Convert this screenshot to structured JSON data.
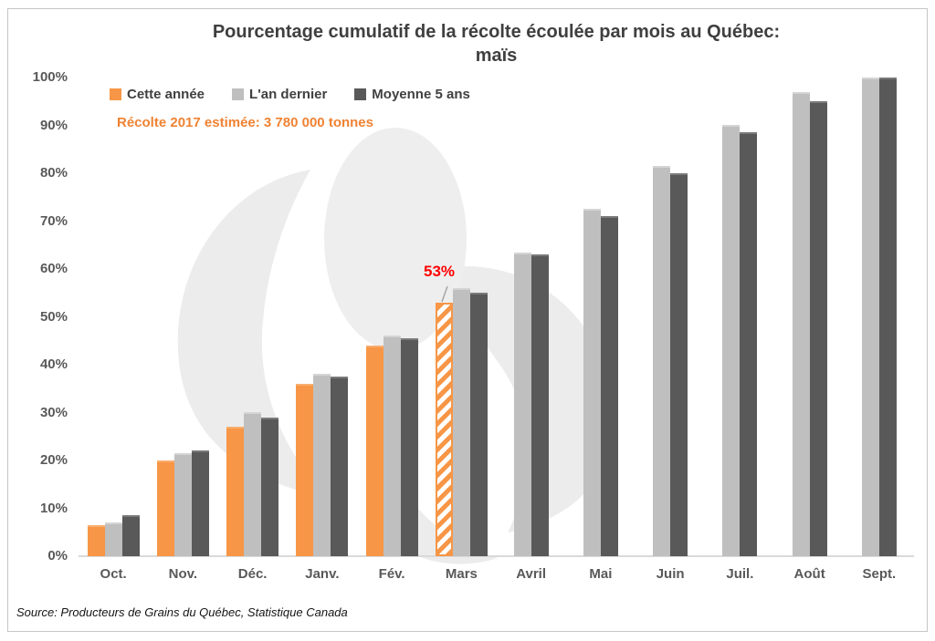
{
  "title": {
    "line1": "Pourcentage cumulatif de la récolte écoulée par mois au Québec:",
    "line2": "maïs"
  },
  "legend": [
    {
      "label": "Cette année",
      "color": "#f79646"
    },
    {
      "label": "L'an dernier",
      "color": "#bfbfbf"
    },
    {
      "label": "Moyenne 5 ans",
      "color": "#595959"
    }
  ],
  "annotation": {
    "text": "Récolte 2017 estimée: 3 780 000 tonnes",
    "color": "#f08232"
  },
  "callout": {
    "text": "53%",
    "color": "#ff0000"
  },
  "source": {
    "text": "Source: Producteurs de Grains du Québec, Statistique Canada"
  },
  "chart_data": {
    "type": "bar",
    "title": "Pourcentage cumulatif de la récolte écoulée par mois au Québec: maïs",
    "categories": [
      "Oct.",
      "Nov.",
      "Déc.",
      "Janv.",
      "Fév.",
      "Mars",
      "Avril",
      "Mai",
      "Juin",
      "Juil.",
      "Août",
      "Sept."
    ],
    "series": [
      {
        "name": "Cette année",
        "color": "#f79646",
        "values": [
          6.5,
          20,
          27,
          36,
          44,
          53,
          null,
          null,
          null,
          null,
          null,
          null
        ]
      },
      {
        "name": "L'an dernier",
        "color": "#bfbfbf",
        "values": [
          7,
          21.5,
          30,
          38,
          46,
          56,
          63.5,
          72.5,
          81.5,
          90,
          97,
          100
        ]
      },
      {
        "name": "Moyenne 5 ans",
        "color": "#595959",
        "values": [
          8.5,
          22,
          29,
          37.5,
          45.5,
          55,
          63,
          71,
          80,
          88.5,
          95,
          100
        ]
      }
    ],
    "y_ticks": [
      "0%",
      "10%",
      "20%",
      "30%",
      "40%",
      "50%",
      "60%",
      "70%",
      "80%",
      "90%",
      "100%"
    ],
    "ylim": [
      0,
      100
    ],
    "xlabel": "",
    "ylabel": "",
    "grid": false,
    "legend_position": "top-left-inside",
    "highlight": {
      "category": "Mars",
      "category_index": 5,
      "series": "Cette année",
      "series_index": 0,
      "style": "hatched",
      "label": "53%"
    }
  }
}
